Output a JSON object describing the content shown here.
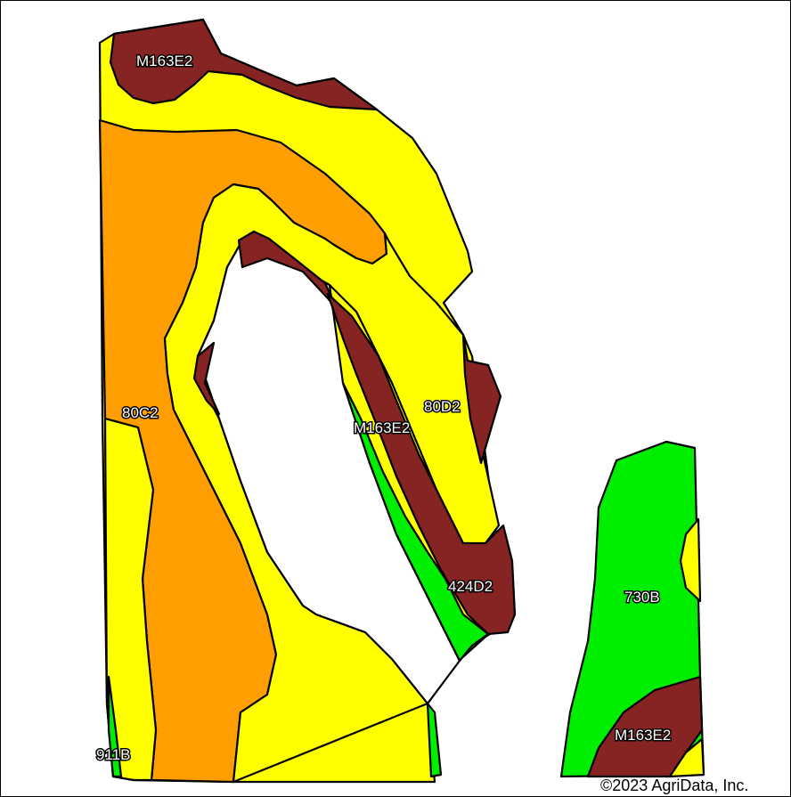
{
  "colors": {
    "yellow": "#ffff00",
    "orange": "#ff9e00",
    "maroon": "#862424",
    "green": "#00ee00",
    "background": "#ffffff",
    "outline": "#000000"
  },
  "soil_labels": {
    "m163e2_top": "M163E2",
    "c80c2": "80C2",
    "c80d2": "80D2",
    "m163e2_mid": "M163E2",
    "c424d2": "424D2",
    "c730b": "730B",
    "m163e2_bottom": "M163E2",
    "c911b": "911B"
  },
  "copyright": "©2023 AgriData, Inc."
}
